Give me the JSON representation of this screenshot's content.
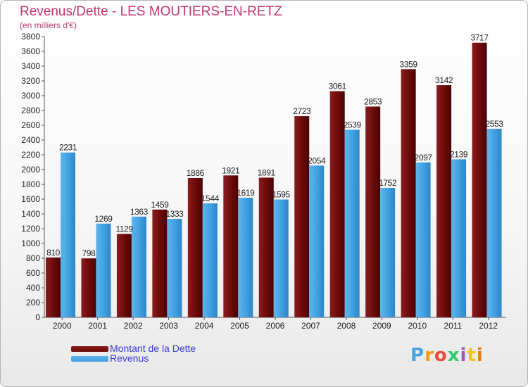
{
  "title": "Revenus/Dette - LES MOUTIERS-EN-RETZ",
  "subtitle": "(en milliers d'€)",
  "colors": {
    "dette": "#6b0a0a",
    "revenus": "#3f9fe0",
    "title": "#c0346d",
    "legend_text": "#3b3bd6"
  },
  "legend": {
    "dette_label": "Montant de la Dette",
    "revenus_label": "Revenus"
  },
  "logo": {
    "letters": [
      "P",
      "r",
      "o",
      "x",
      "i",
      "t",
      "i"
    ],
    "colors": [
      "#4aa3df",
      "#f39c12",
      "#e74c3c",
      "#2ecc71",
      "#9b59b6",
      "#f1c40f",
      "#e67e22"
    ]
  },
  "chart_data": {
    "type": "bar",
    "categories": [
      "2000",
      "2001",
      "2002",
      "2003",
      "2004",
      "2005",
      "2006",
      "2007",
      "2008",
      "2009",
      "2010",
      "2011",
      "2012"
    ],
    "series": [
      {
        "name": "Montant de la Dette",
        "values": [
          810,
          798,
          1129,
          1459,
          1886,
          1921,
          1891,
          2723,
          3061,
          2853,
          3359,
          3142,
          3717
        ]
      },
      {
        "name": "Revenus",
        "values": [
          2231,
          1269,
          1363,
          1333,
          1544,
          1619,
          1595,
          2054,
          2539,
          1752,
          2097,
          2139,
          2553
        ]
      }
    ],
    "ylim": [
      0,
      3800
    ],
    "yticks": [
      0,
      200,
      400,
      600,
      800,
      1000,
      1200,
      1400,
      1600,
      1800,
      2000,
      2200,
      2400,
      2600,
      2800,
      3000,
      3200,
      3400,
      3600,
      3800
    ],
    "grid": false,
    "legend_position": "bottom-left"
  }
}
